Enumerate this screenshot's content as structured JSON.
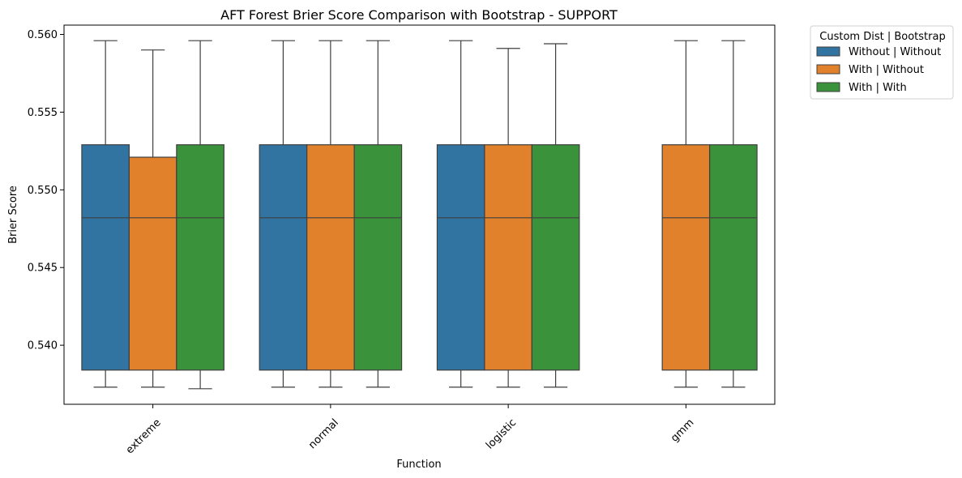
{
  "chart_data": {
    "type": "box",
    "title": "AFT Forest Brier Score Comparison with Bootstrap - SUPPORT",
    "xlabel": "Function",
    "ylabel": "Brier Score",
    "categories": [
      "extreme",
      "normal",
      "logistic",
      "gmm"
    ],
    "ylim": [
      0.5362,
      0.5606
    ],
    "yticks": [
      0.54,
      0.545,
      0.55,
      0.555,
      0.56
    ],
    "ytick_labels": [
      "0.540",
      "0.545",
      "0.550",
      "0.555",
      "0.560"
    ],
    "grid": false,
    "legend": {
      "title": "Custom Dist | Bootstrap",
      "placement": "outside-upper-right"
    },
    "series": [
      {
        "name": "Without | Without",
        "color": "#3274a1",
        "boxes": [
          {
            "min": 0.5373,
            "q1": 0.5384,
            "median": 0.5482,
            "q3": 0.5529,
            "max": 0.5596
          },
          {
            "min": 0.5373,
            "q1": 0.5384,
            "median": 0.5482,
            "q3": 0.5529,
            "max": 0.5596
          },
          {
            "min": 0.5373,
            "q1": 0.5384,
            "median": 0.5482,
            "q3": 0.5529,
            "max": 0.5596
          },
          null
        ]
      },
      {
        "name": "With | Without",
        "color": "#e1812c",
        "boxes": [
          {
            "min": 0.5373,
            "q1": 0.5384,
            "median": 0.5482,
            "q3": 0.5521,
            "max": 0.559
          },
          {
            "min": 0.5373,
            "q1": 0.5384,
            "median": 0.5482,
            "q3": 0.5529,
            "max": 0.5596
          },
          {
            "min": 0.5373,
            "q1": 0.5384,
            "median": 0.5482,
            "q3": 0.5529,
            "max": 0.5591
          },
          {
            "min": 0.5373,
            "q1": 0.5384,
            "median": 0.5482,
            "q3": 0.5529,
            "max": 0.5596
          }
        ]
      },
      {
        "name": "With | With",
        "color": "#3a923a",
        "boxes": [
          {
            "min": 0.5372,
            "q1": 0.5384,
            "median": 0.5482,
            "q3": 0.5529,
            "max": 0.5596
          },
          {
            "min": 0.5373,
            "q1": 0.5384,
            "median": 0.5482,
            "q3": 0.5529,
            "max": 0.5596
          },
          {
            "min": 0.5373,
            "q1": 0.5384,
            "median": 0.5482,
            "q3": 0.5529,
            "max": 0.5594
          },
          {
            "min": 0.5373,
            "q1": 0.5384,
            "median": 0.5482,
            "q3": 0.5529,
            "max": 0.5596
          }
        ]
      }
    ]
  }
}
